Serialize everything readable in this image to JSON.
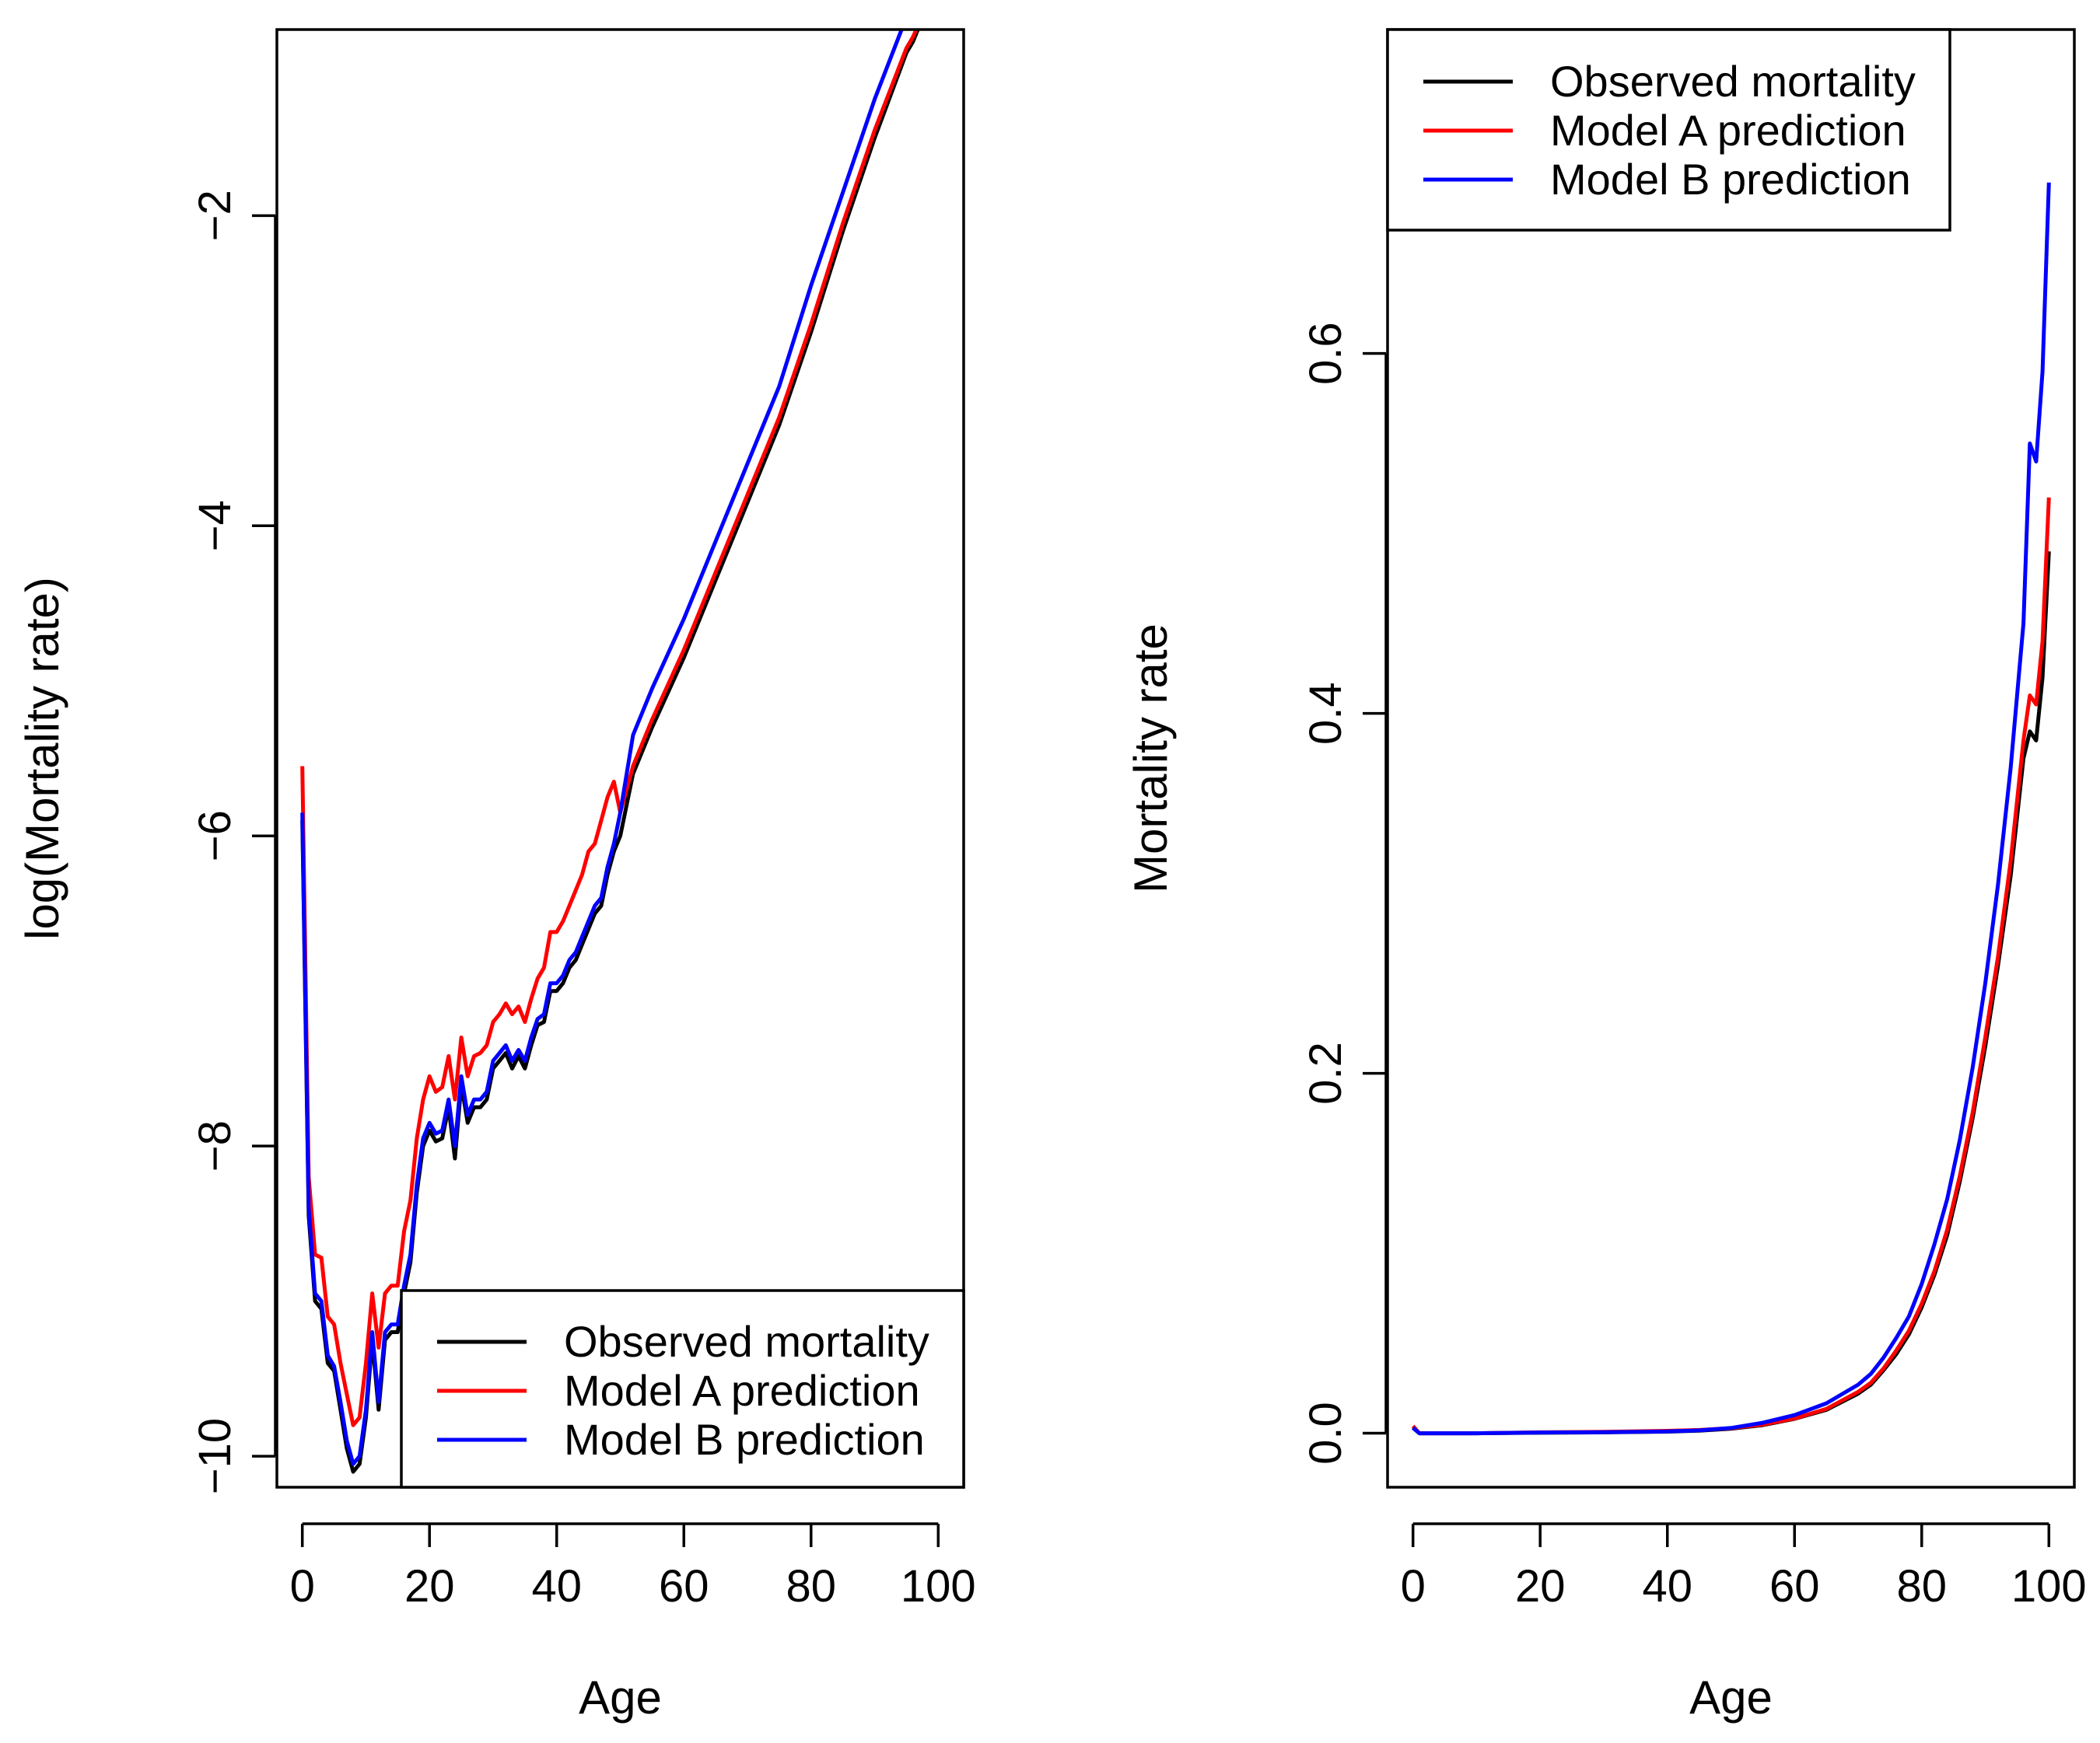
{
  "colors": {
    "observed": "#000000",
    "model_a": "#ff0000",
    "model_b": "#0000ff"
  },
  "chart_data": [
    {
      "type": "line",
      "title": "",
      "xlabel": "Age",
      "ylabel": "log(Mortality rate)",
      "xlim": [
        -4,
        104
      ],
      "ylim": [
        -10.2,
        -0.8
      ],
      "x_ticks": [
        0,
        20,
        40,
        60,
        80,
        100
      ],
      "x_tick_labels": [
        "0",
        "20",
        "40",
        "60",
        "80",
        "100"
      ],
      "y_ticks": [
        -10,
        -8,
        -6,
        -4,
        -2
      ],
      "y_tick_labels": [
        "−10",
        "−8",
        "−6",
        "−4",
        "−2"
      ],
      "grid": false,
      "legend_position": "bottom-right",
      "series": [
        {
          "name": "Observed mortality",
          "color": "#000000",
          "x": [
            0,
            1,
            2,
            3,
            4,
            5,
            6,
            7,
            8,
            9,
            10,
            11,
            12,
            13,
            14,
            15,
            16,
            17,
            18,
            19,
            20,
            21,
            22,
            23,
            24,
            25,
            26,
            27,
            28,
            29,
            30,
            31,
            32,
            33,
            34,
            35,
            36,
            37,
            38,
            39,
            40,
            41,
            42,
            43,
            44,
            45,
            46,
            47,
            48,
            49,
            50,
            52,
            55,
            60,
            65,
            70,
            75,
            80,
            85,
            90,
            95,
            96,
            97,
            98,
            99,
            100
          ],
          "values": [
            -5.9,
            -8.45,
            -9.0,
            -9.05,
            -9.4,
            -9.45,
            -9.7,
            -9.95,
            -10.1,
            -10.05,
            -9.75,
            -9.25,
            -9.7,
            -9.25,
            -9.2,
            -9.2,
            -8.95,
            -8.75,
            -8.3,
            -8.0,
            -7.9,
            -7.97,
            -7.95,
            -7.75,
            -8.08,
            -7.6,
            -7.85,
            -7.75,
            -7.75,
            -7.7,
            -7.5,
            -7.45,
            -7.4,
            -7.5,
            -7.42,
            -7.5,
            -7.35,
            -7.22,
            -7.2,
            -7.0,
            -7.0,
            -6.95,
            -6.85,
            -6.8,
            -6.7,
            -6.6,
            -6.5,
            -6.45,
            -6.25,
            -6.1,
            -6.0,
            -5.6,
            -5.3,
            -4.85,
            -4.35,
            -3.85,
            -3.35,
            -2.75,
            -2.1,
            -1.5,
            -0.95,
            -0.88,
            -0.78,
            -0.68,
            -0.65,
            -0.55
          ]
        },
        {
          "name": "Model A prediction",
          "color": "#ff0000",
          "x": [
            0,
            1,
            2,
            3,
            4,
            5,
            6,
            7,
            8,
            9,
            10,
            11,
            12,
            13,
            14,
            15,
            16,
            17,
            18,
            19,
            20,
            21,
            22,
            23,
            24,
            25,
            26,
            27,
            28,
            29,
            30,
            31,
            32,
            33,
            34,
            35,
            36,
            37,
            38,
            39,
            40,
            41,
            42,
            43,
            44,
            45,
            46,
            47,
            48,
            49,
            50,
            52,
            55,
            60,
            65,
            70,
            75,
            80,
            85,
            90,
            95,
            96,
            97,
            98,
            99,
            100
          ],
          "values": [
            -5.55,
            -8.2,
            -8.7,
            -8.72,
            -9.1,
            -9.15,
            -9.4,
            -9.6,
            -9.8,
            -9.75,
            -9.4,
            -8.95,
            -9.3,
            -8.95,
            -8.9,
            -8.9,
            -8.55,
            -8.35,
            -7.95,
            -7.7,
            -7.55,
            -7.65,
            -7.62,
            -7.42,
            -7.7,
            -7.3,
            -7.55,
            -7.42,
            -7.4,
            -7.35,
            -7.2,
            -7.15,
            -7.08,
            -7.15,
            -7.1,
            -7.2,
            -7.05,
            -6.92,
            -6.85,
            -6.62,
            -6.62,
            -6.55,
            -6.45,
            -6.35,
            -6.25,
            -6.1,
            -6.05,
            -5.9,
            -5.75,
            -5.65,
            -5.85,
            -5.55,
            -5.25,
            -4.8,
            -4.3,
            -3.8,
            -3.3,
            -2.7,
            -2.05,
            -1.45,
            -0.92,
            -0.85,
            -0.76,
            -0.66,
            -0.62,
            -0.52
          ]
        },
        {
          "name": "Model B prediction",
          "color": "#0000ff",
          "x": [
            0,
            1,
            2,
            3,
            4,
            5,
            6,
            7,
            8,
            9,
            10,
            11,
            12,
            13,
            14,
            15,
            16,
            17,
            18,
            19,
            20,
            21,
            22,
            23,
            24,
            25,
            26,
            27,
            28,
            29,
            30,
            31,
            32,
            33,
            34,
            35,
            36,
            37,
            38,
            39,
            40,
            41,
            42,
            43,
            44,
            45,
            46,
            47,
            48,
            49,
            50,
            52,
            55,
            60,
            65,
            70,
            75,
            80,
            85,
            90,
            95,
            96,
            97,
            98,
            99,
            100
          ],
          "values": [
            -5.85,
            -8.4,
            -8.95,
            -9.0,
            -9.35,
            -9.42,
            -9.65,
            -9.9,
            -10.05,
            -10.0,
            -9.7,
            -9.2,
            -9.65,
            -9.2,
            -9.15,
            -9.15,
            -8.9,
            -8.7,
            -8.25,
            -7.95,
            -7.85,
            -7.92,
            -7.9,
            -7.7,
            -8.0,
            -7.55,
            -7.8,
            -7.7,
            -7.7,
            -7.65,
            -7.45,
            -7.4,
            -7.35,
            -7.45,
            -7.38,
            -7.45,
            -7.3,
            -7.18,
            -7.15,
            -6.95,
            -6.95,
            -6.9,
            -6.8,
            -6.75,
            -6.65,
            -6.55,
            -6.45,
            -6.4,
            -6.2,
            -6.05,
            -5.85,
            -5.35,
            -5.05,
            -4.6,
            -4.1,
            -3.6,
            -3.1,
            -2.45,
            -1.85,
            -1.25,
            -0.72,
            -0.58,
            -0.58,
            -0.45,
            -0.38,
            -0.25
          ]
        }
      ]
    },
    {
      "type": "line",
      "title": "",
      "xlabel": "Age",
      "ylabel": "Mortality rate",
      "xlim": [
        -4,
        104
      ],
      "ylim": [
        -0.03,
        0.78
      ],
      "x_ticks": [
        0,
        20,
        40,
        60,
        80,
        100
      ],
      "x_tick_labels": [
        "0",
        "20",
        "40",
        "60",
        "80",
        "100"
      ],
      "y_ticks": [
        0.0,
        0.2,
        0.4,
        0.6
      ],
      "y_tick_labels": [
        "0.0",
        "0.2",
        "0.4",
        "0.6"
      ],
      "grid": false,
      "legend_position": "top-left",
      "series": [
        {
          "name": "Observed mortality",
          "color": "#000000",
          "x": [
            0,
            1,
            5,
            10,
            20,
            30,
            40,
            45,
            50,
            55,
            60,
            65,
            70,
            72,
            74,
            76,
            78,
            80,
            82,
            84,
            86,
            88,
            90,
            92,
            94,
            96,
            97,
            98,
            99,
            100
          ],
          "values": [
            0.003,
            0.0,
            0.0,
            0.0,
            0.0003,
            0.0005,
            0.0009,
            0.0014,
            0.0025,
            0.0045,
            0.008,
            0.013,
            0.022,
            0.027,
            0.035,
            0.044,
            0.055,
            0.07,
            0.088,
            0.11,
            0.14,
            0.175,
            0.215,
            0.26,
            0.31,
            0.375,
            0.39,
            0.385,
            0.42,
            0.49
          ]
        },
        {
          "name": "Model A prediction",
          "color": "#ff0000",
          "x": [
            0,
            1,
            5,
            10,
            20,
            30,
            40,
            45,
            50,
            55,
            60,
            65,
            70,
            72,
            74,
            76,
            78,
            80,
            82,
            84,
            86,
            88,
            90,
            92,
            94,
            96,
            97,
            98,
            99,
            100
          ],
          "values": [
            0.004,
            0.0,
            0.0,
            0.0,
            0.0005,
            0.0008,
            0.0013,
            0.0018,
            0.0028,
            0.0048,
            0.0082,
            0.0135,
            0.023,
            0.028,
            0.036,
            0.046,
            0.057,
            0.072,
            0.09,
            0.113,
            0.143,
            0.178,
            0.22,
            0.265,
            0.318,
            0.385,
            0.41,
            0.405,
            0.44,
            0.52
          ]
        },
        {
          "name": "Model B prediction",
          "color": "#0000ff",
          "x": [
            0,
            1,
            5,
            10,
            20,
            30,
            40,
            45,
            50,
            55,
            60,
            65,
            70,
            72,
            74,
            76,
            78,
            80,
            82,
            84,
            86,
            88,
            90,
            92,
            94,
            96,
            97,
            98,
            99,
            100
          ],
          "values": [
            0.003,
            0.0,
            0.0,
            0.0,
            0.0004,
            0.0006,
            0.001,
            0.0016,
            0.0029,
            0.0058,
            0.0101,
            0.0166,
            0.027,
            0.033,
            0.042,
            0.053,
            0.065,
            0.083,
            0.105,
            0.13,
            0.163,
            0.203,
            0.25,
            0.305,
            0.37,
            0.45,
            0.55,
            0.54,
            0.59,
            0.695
          ]
        }
      ]
    }
  ]
}
